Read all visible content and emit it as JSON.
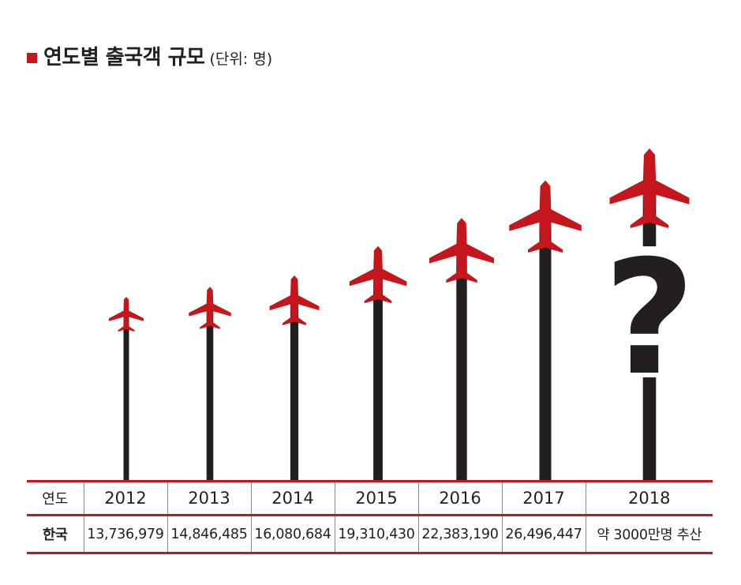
{
  "title": {
    "main": "연도별 출국객 규모",
    "unit": "(단위: 명)"
  },
  "colors": {
    "accent": "#c4161c",
    "pole": "#231f20"
  },
  "table": {
    "year_header": "연도",
    "value_header": "한국",
    "years": [
      "2012",
      "2013",
      "2014",
      "2015",
      "2016",
      "2017",
      "2018"
    ],
    "values": [
      "13,736,979",
      "14,846,485",
      "16,080,684",
      "19,310,430",
      "22,383,190",
      "26,496,447",
      "약 3000만명 추산"
    ]
  },
  "chart_data": {
    "type": "bar",
    "categories": [
      "2012",
      "2013",
      "2014",
      "2015",
      "2016",
      "2017",
      "2018"
    ],
    "values": [
      13736979,
      14846485,
      16080684,
      19310430,
      22383190,
      26496447,
      30000000
    ],
    "title": "연도별 출국객 규모",
    "unit": "(단위: 명)",
    "annotations": [
      "?"
    ],
    "grid": false
  }
}
